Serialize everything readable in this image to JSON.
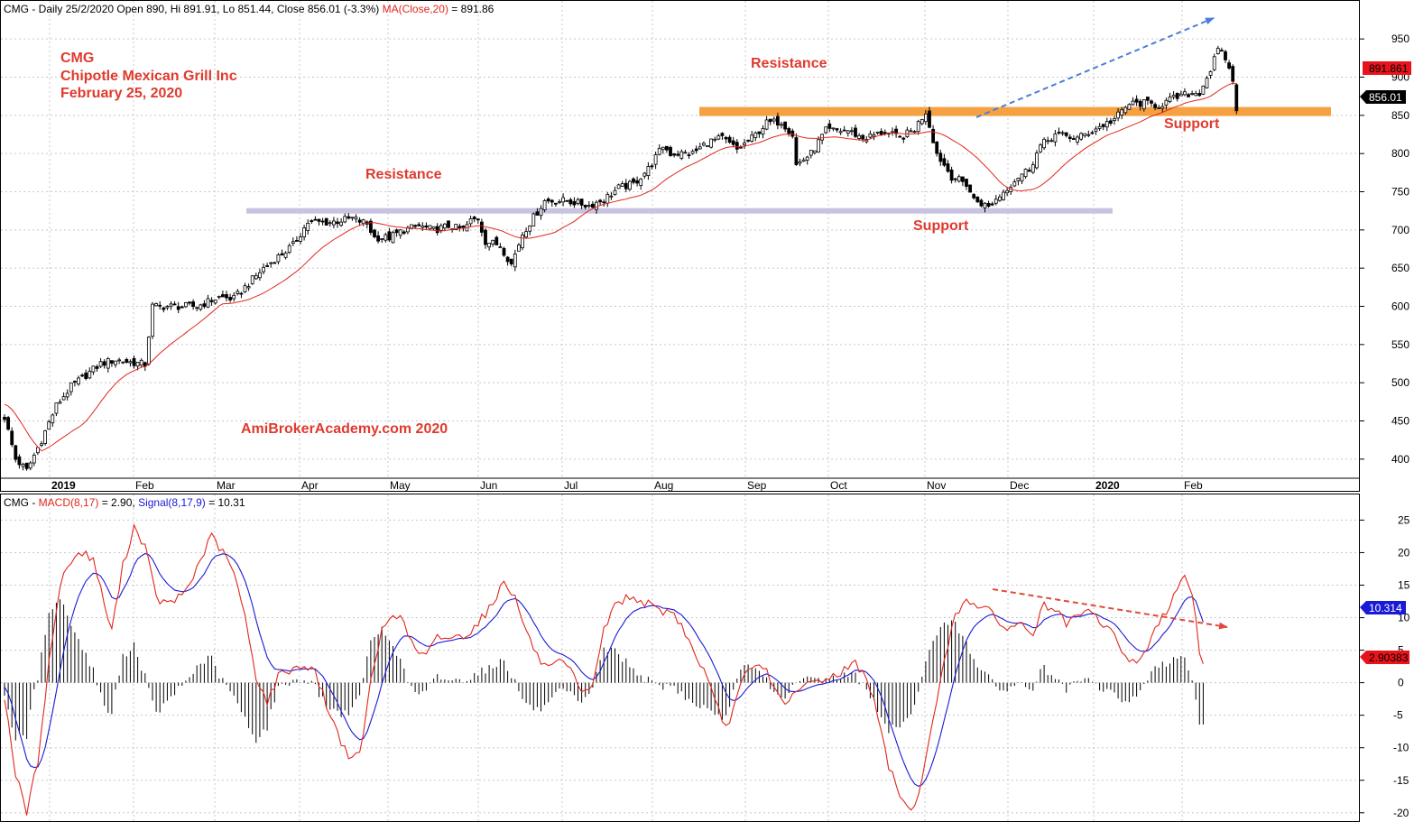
{
  "price_header": {
    "symbol_prefix": "CMG - Daily 25/2/2020 Open 890, Hi 891.91, Lo 851.44, Close 856.01 (-3.3%)",
    "ma_label": "MA(Close,20)",
    "ma_value": " = 891.86"
  },
  "macd_header": {
    "prefix": "CMG - ",
    "macd_label": "MACD(8,17)",
    "macd_value": " = 2.90, ",
    "signal_label": "Signal(8,17,9)",
    "signal_value": " = 10.31"
  },
  "annotations": {
    "title1": "CMG",
    "title2": "Chipotle Mexican Grill Inc",
    "title3": "February 25, 2020",
    "resistance_upper": "Resistance",
    "resistance_lower": "Resistance",
    "support_upper": "Support",
    "support_lower": "Support",
    "watermark": "AmiBrokerAcademy.com  2020"
  },
  "badges": {
    "ma_badge": "891.861",
    "close_badge": "856.01",
    "signal_badge": "10.314",
    "macd_badge": "2.90383"
  },
  "colors": {
    "up_fill": "#ffffff",
    "down_fill": "#000000",
    "ma_line": "#e0271c",
    "macd_line": "#e0271c",
    "signal_line": "#1a1ad6",
    "resistance_band": "#f5a142",
    "support_band": "#c8c3e0",
    "annotation_text": "#e03a2e",
    "trend_up_arrow": "#4a7fd6",
    "trend_down_arrow": "#e04a3a"
  },
  "chart_data": {
    "type": "candlestick",
    "symbol": "CMG",
    "period": "Daily",
    "date_range": [
      "2019-01-02",
      "2020-02-25"
    ],
    "last_bar": {
      "date": "2020-02-25",
      "open": 890,
      "high": 891.91,
      "low": 851.44,
      "close": 856.01,
      "change_pct": -3.3
    },
    "ma20_last": 891.86,
    "price_ylim": [
      375,
      975
    ],
    "price_ticks": [
      400,
      450,
      500,
      550,
      600,
      650,
      700,
      750,
      800,
      850,
      900,
      950
    ],
    "x_ticks": [
      {
        "label": "2019",
        "bold": true
      },
      {
        "label": "Feb"
      },
      {
        "label": "Mar"
      },
      {
        "label": "Apr"
      },
      {
        "label": "May"
      },
      {
        "label": "Jun"
      },
      {
        "label": "Jul"
      },
      {
        "label": "Aug"
      },
      {
        "label": "Sep"
      },
      {
        "label": "Oct"
      },
      {
        "label": "Nov"
      },
      {
        "label": "Dec"
      },
      {
        "label": "2020",
        "bold": true
      },
      {
        "label": "Feb"
      }
    ],
    "close_anchors": [
      [
        0,
        455
      ],
      [
        3,
        400
      ],
      [
        6,
        385
      ],
      [
        10,
        425
      ],
      [
        14,
        470
      ],
      [
        18,
        495
      ],
      [
        22,
        510
      ],
      [
        26,
        525
      ],
      [
        30,
        530
      ],
      [
        34,
        527
      ],
      [
        38,
        524
      ],
      [
        40,
        600
      ],
      [
        46,
        600
      ],
      [
        52,
        600
      ],
      [
        58,
        612
      ],
      [
        62,
        610
      ],
      [
        66,
        630
      ],
      [
        70,
        650
      ],
      [
        74,
        665
      ],
      [
        78,
        680
      ],
      [
        82,
        710
      ],
      [
        88,
        710
      ],
      [
        94,
        715
      ],
      [
        98,
        708
      ],
      [
        100,
        690
      ],
      [
        104,
        690
      ],
      [
        108,
        700
      ],
      [
        112,
        705
      ],
      [
        116,
        700
      ],
      [
        120,
        705
      ],
      [
        124,
        700
      ],
      [
        126,
        712
      ],
      [
        128,
        715
      ],
      [
        130,
        685
      ],
      [
        134,
        680
      ],
      [
        137,
        655
      ],
      [
        140,
        695
      ],
      [
        146,
        738
      ],
      [
        152,
        738
      ],
      [
        158,
        732
      ],
      [
        162,
        740
      ],
      [
        166,
        755
      ],
      [
        170,
        760
      ],
      [
        174,
        780
      ],
      [
        178,
        810
      ],
      [
        180,
        800
      ],
      [
        186,
        800
      ],
      [
        190,
        815
      ],
      [
        194,
        820
      ],
      [
        198,
        805
      ],
      [
        202,
        820
      ],
      [
        206,
        840
      ],
      [
        210,
        842
      ],
      [
        213,
        825
      ],
      [
        214,
        785
      ],
      [
        218,
        800
      ],
      [
        222,
        830
      ],
      [
        228,
        830
      ],
      [
        232,
        820
      ],
      [
        238,
        828
      ],
      [
        242,
        820
      ],
      [
        246,
        832
      ],
      [
        249,
        855
      ],
      [
        252,
        800
      ],
      [
        256,
        770
      ],
      [
        260,
        760
      ],
      [
        262,
        740
      ],
      [
        266,
        730
      ],
      [
        270,
        750
      ],
      [
        274,
        770
      ],
      [
        277,
        780
      ],
      [
        280,
        810
      ],
      [
        284,
        825
      ],
      [
        290,
        820
      ],
      [
        296,
        835
      ],
      [
        300,
        845
      ],
      [
        304,
        865
      ],
      [
        308,
        866
      ],
      [
        312,
        863
      ],
      [
        316,
        872
      ],
      [
        320,
        878
      ],
      [
        323,
        880
      ],
      [
        326,
        910
      ],
      [
        328,
        935
      ],
      [
        330,
        925
      ],
      [
        332,
        895
      ],
      [
        333,
        856
      ]
    ],
    "macd_ylim": [
      -21,
      27
    ],
    "macd_ticks": [
      -20,
      -15,
      -10,
      -5,
      0,
      5,
      10,
      15,
      20,
      25
    ],
    "macd_anchors": [
      [
        0,
        -2
      ],
      [
        3,
        -14
      ],
      [
        6,
        -20
      ],
      [
        9,
        -12
      ],
      [
        12,
        3
      ],
      [
        15,
        15
      ],
      [
        18,
        19
      ],
      [
        21,
        20
      ],
      [
        24,
        19
      ],
      [
        27,
        12
      ],
      [
        29,
        8
      ],
      [
        32,
        18
      ],
      [
        35,
        24
      ],
      [
        38,
        21
      ],
      [
        41,
        13
      ],
      [
        44,
        12
      ],
      [
        47,
        13
      ],
      [
        50,
        15
      ],
      [
        53,
        19
      ],
      [
        56,
        22.5
      ],
      [
        59,
        20
      ],
      [
        62,
        17
      ],
      [
        65,
        10
      ],
      [
        68,
        1
      ],
      [
        71,
        -3
      ],
      [
        74,
        1
      ],
      [
        77,
        2
      ],
      [
        80,
        2.5
      ],
      [
        83,
        2.5
      ],
      [
        85,
        0
      ],
      [
        88,
        -5
      ],
      [
        91,
        -9
      ],
      [
        94,
        -12
      ],
      [
        96,
        -11
      ],
      [
        99,
        0
      ],
      [
        102,
        8
      ],
      [
        105,
        11
      ],
      [
        108,
        9
      ],
      [
        111,
        5
      ],
      [
        114,
        4
      ],
      [
        117,
        7
      ],
      [
        120,
        7
      ],
      [
        123,
        7
      ],
      [
        126,
        8
      ],
      [
        129,
        10
      ],
      [
        132,
        12
      ],
      [
        135,
        16
      ],
      [
        138,
        13
      ],
      [
        141,
        8
      ],
      [
        144,
        4
      ],
      [
        147,
        2
      ],
      [
        150,
        3
      ],
      [
        153,
        2
      ],
      [
        156,
        -2
      ],
      [
        159,
        0
      ],
      [
        162,
        8
      ],
      [
        165,
        12
      ],
      [
        168,
        13
      ],
      [
        171,
        13
      ],
      [
        174,
        12
      ],
      [
        177,
        11
      ],
      [
        180,
        11
      ],
      [
        183,
        9
      ],
      [
        186,
        5
      ],
      [
        189,
        2
      ],
      [
        192,
        -3
      ],
      [
        195,
        -7
      ],
      [
        197,
        -4
      ],
      [
        200,
        1
      ],
      [
        203,
        2.5
      ],
      [
        206,
        2
      ],
      [
        209,
        -2
      ],
      [
        212,
        -3
      ],
      [
        215,
        -1
      ],
      [
        218,
        0
      ],
      [
        221,
        0.5
      ],
      [
        224,
        1
      ],
      [
        227,
        2
      ],
      [
        230,
        3
      ],
      [
        233,
        1
      ],
      [
        236,
        -5
      ],
      [
        239,
        -13
      ],
      [
        242,
        -17
      ],
      [
        245,
        -20
      ],
      [
        248,
        -15
      ],
      [
        251,
        -6
      ],
      [
        254,
        4
      ],
      [
        257,
        10
      ],
      [
        260,
        13
      ],
      [
        263,
        12
      ],
      [
        266,
        11
      ],
      [
        269,
        9
      ],
      [
        272,
        8.5
      ],
      [
        275,
        9
      ],
      [
        278,
        7.5
      ],
      [
        281,
        12
      ],
      [
        284,
        11
      ],
      [
        287,
        9
      ],
      [
        290,
        10
      ],
      [
        293,
        11
      ],
      [
        296,
        9.5
      ],
      [
        299,
        8
      ],
      [
        302,
        5
      ],
      [
        305,
        3
      ],
      [
        308,
        4.5
      ],
      [
        311,
        8
      ],
      [
        314,
        11
      ],
      [
        317,
        15
      ],
      [
        319,
        16.5
      ],
      [
        321,
        14
      ],
      [
        323,
        5
      ],
      [
        324,
        2.9
      ]
    ],
    "signal_last": 10.31,
    "macd_last": 2.9,
    "levels": [
      {
        "label": "Resistance",
        "value": 855
      },
      {
        "label": "Support",
        "value": 725
      }
    ]
  }
}
